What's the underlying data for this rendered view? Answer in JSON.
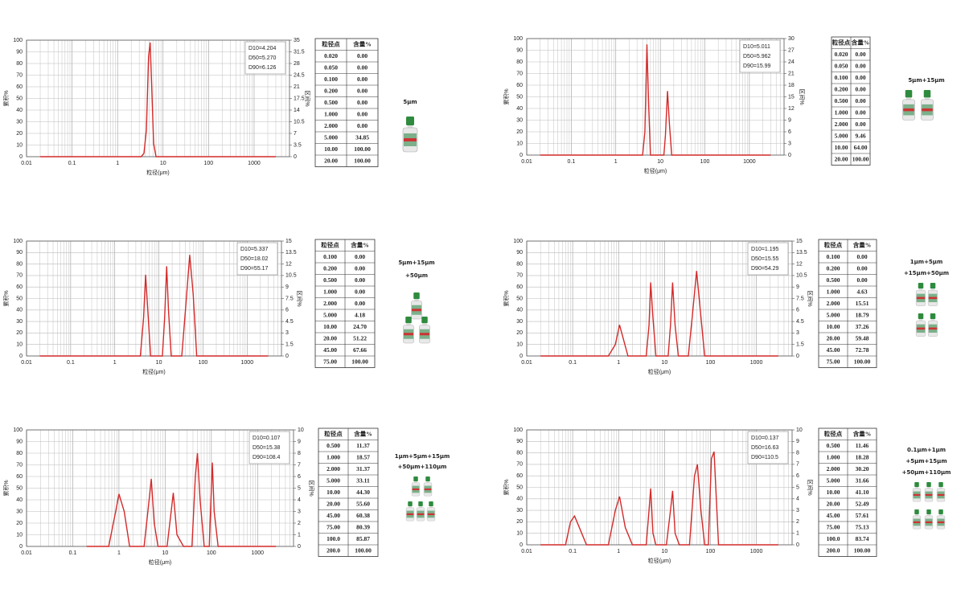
{
  "chart_data": [
    {
      "type": "line",
      "x_label": "粒径(μm)",
      "y_label": "累积%",
      "y2_label": "区间%",
      "xscale": "log",
      "grid": true,
      "minor_grid": true,
      "xlim": [
        0.01,
        6000
      ],
      "xticks": [
        0.01,
        0.1,
        1,
        10,
        100,
        1000
      ],
      "ylim": [
        0,
        100
      ],
      "yticks": [
        0,
        10,
        20,
        30,
        40,
        50,
        60,
        70,
        80,
        90,
        100
      ],
      "y2lim": [
        0,
        35
      ],
      "y2ticks": [
        0,
        3.5,
        7,
        10.5,
        14,
        17.5,
        21,
        24.5,
        28,
        31.5,
        35
      ],
      "x": [
        0.02,
        3.3,
        3.8,
        4.3,
        4.8,
        5.2,
        5.6,
        6.2,
        7,
        3000
      ],
      "series": [
        {
          "color": "#d42a2a",
          "axis": "y2",
          "values": [
            0,
            0,
            1,
            8,
            30,
            34.3,
            22,
            4,
            0,
            0
          ]
        }
      ],
      "stats": [
        "D10=4.204",
        "D50=5.270",
        "D90=6.126"
      ],
      "table": {
        "header": [
          "粒径点",
          "含量%"
        ],
        "rows": [
          [
            "0.020",
            "0.00"
          ],
          [
            "0.050",
            "0.00"
          ],
          [
            "0.100",
            "0.00"
          ],
          [
            "0.200",
            "0.00"
          ],
          [
            "0.500",
            "0.00"
          ],
          [
            "1.000",
            "0.00"
          ],
          [
            "2.000",
            "0.00"
          ],
          [
            "5.000",
            "34.85"
          ],
          [
            "10.00",
            "100.00"
          ],
          [
            "20.00",
            "100.00"
          ]
        ]
      },
      "label": [
        "5μm"
      ]
    },
    {
      "type": "line",
      "x_label": "粒径(μm)",
      "y_label": "累积%",
      "y2_label": "区间%",
      "xscale": "log",
      "grid": true,
      "minor_grid": true,
      "xlim": [
        0.01,
        6000
      ],
      "xticks": [
        0.01,
        0.1,
        1,
        10,
        100,
        1000
      ],
      "ylim": [
        0,
        100
      ],
      "yticks": [
        0,
        10,
        20,
        30,
        40,
        50,
        60,
        70,
        80,
        90,
        100
      ],
      "y2lim": [
        0,
        30
      ],
      "y2ticks": [
        0,
        3,
        6,
        9,
        12,
        15,
        18,
        21,
        24,
        27,
        30
      ],
      "x": [
        0.02,
        4,
        4.5,
        5,
        5.5,
        6,
        12,
        13,
        14.5,
        16,
        18,
        3000
      ],
      "series": [
        {
          "color": "#d42a2a",
          "axis": "y2",
          "values": [
            0,
            0,
            6,
            28.5,
            12,
            0,
            0,
            5,
            16.5,
            8,
            0,
            0
          ]
        }
      ],
      "stats": [
        "D10=5.011",
        "D50=5.962",
        "D90=15.99"
      ],
      "table": {
        "header": [
          "粒径点",
          "含量%"
        ],
        "rows": [
          [
            "0.020",
            "0.00"
          ],
          [
            "0.050",
            "0.00"
          ],
          [
            "0.100",
            "0.00"
          ],
          [
            "0.200",
            "0.00"
          ],
          [
            "0.500",
            "0.00"
          ],
          [
            "1.000",
            "0.00"
          ],
          [
            "2.000",
            "0.00"
          ],
          [
            "5.000",
            "9.46"
          ],
          [
            "10.00",
            "64.00"
          ],
          [
            "20.00",
            "100.00"
          ]
        ]
      },
      "label": [
        "5μm+15μm"
      ]
    },
    {
      "type": "line",
      "x_label": "粒径(μm)",
      "y_label": "累积%",
      "y2_label": "区间%",
      "xscale": "log",
      "grid": true,
      "minor_grid": true,
      "xlim": [
        0.01,
        6000
      ],
      "xticks": [
        0.01,
        0.1,
        1,
        10,
        100,
        1000
      ],
      "ylim": [
        0,
        100
      ],
      "yticks": [
        0,
        10,
        20,
        30,
        40,
        50,
        60,
        70,
        80,
        90,
        100
      ],
      "y2lim": [
        0,
        15
      ],
      "y2ticks": [
        0,
        1.5,
        3,
        4.5,
        6,
        7.5,
        9,
        10.5,
        12,
        13.5,
        15
      ],
      "x": [
        0.02,
        3.8,
        4.5,
        5,
        5.6,
        6.5,
        12,
        13.5,
        15,
        16.5,
        19,
        33,
        40,
        50,
        60,
        72,
        3000
      ],
      "series": [
        {
          "color": "#d42a2a",
          "axis": "y2",
          "values": [
            0,
            0,
            5,
            10.6,
            6,
            0,
            0,
            5,
            11.7,
            6,
            0,
            0,
            6,
            13.2,
            8,
            0,
            0
          ]
        }
      ],
      "stats": [
        "D10=5.337",
        "D50=18.02",
        "D90=55.17"
      ],
      "table": {
        "header": [
          "粒径点",
          "含量%"
        ],
        "rows": [
          [
            "0.100",
            "0.00"
          ],
          [
            "0.200",
            "0.00"
          ],
          [
            "0.500",
            "0.00"
          ],
          [
            "1.000",
            "0.00"
          ],
          [
            "2.000",
            "0.00"
          ],
          [
            "5.000",
            "4.18"
          ],
          [
            "10.00",
            "24.70"
          ],
          [
            "20.00",
            "51.22"
          ],
          [
            "45.00",
            "67.66"
          ],
          [
            "75.00",
            "100.00"
          ]
        ]
      },
      "label": [
        "5μm+15μm",
        "+50μm"
      ]
    },
    {
      "type": "line",
      "x_label": "粒径(μm)",
      "y_label": "累积%",
      "y2_label": "区间%",
      "xscale": "log",
      "grid": true,
      "minor_grid": true,
      "xlim": [
        0.01,
        6000
      ],
      "xticks": [
        0.01,
        0.1,
        1,
        10,
        100,
        1000
      ],
      "ylim": [
        0,
        100
      ],
      "yticks": [
        0,
        10,
        20,
        30,
        40,
        50,
        60,
        70,
        80,
        90,
        100
      ],
      "y2lim": [
        0,
        15
      ],
      "y2ticks": [
        0,
        1.5,
        3,
        4.5,
        6,
        7.5,
        9,
        10.5,
        12,
        13.5,
        15
      ],
      "x": [
        0.02,
        0.6,
        0.85,
        1.05,
        1.3,
        1.6,
        4,
        4.6,
        5,
        5.6,
        6.5,
        12,
        13.5,
        15,
        17,
        20,
        33,
        40,
        50,
        60,
        75,
        3000
      ],
      "series": [
        {
          "color": "#d42a2a",
          "axis": "y2",
          "values": [
            0,
            0,
            1.5,
            4.05,
            2,
            0,
            0,
            4,
            9.6,
            5,
            0,
            0,
            4,
            9.6,
            4,
            0,
            0,
            5,
            11.1,
            6,
            0,
            0
          ]
        }
      ],
      "stats": [
        "D10=1.195",
        "D50=15.55",
        "D90=54.29"
      ],
      "table": {
        "header": [
          "粒径点",
          "含量%"
        ],
        "rows": [
          [
            "0.100",
            "0.00"
          ],
          [
            "0.200",
            "0.00"
          ],
          [
            "0.500",
            "0.00"
          ],
          [
            "1.000",
            "4.63"
          ],
          [
            "2.000",
            "15.51"
          ],
          [
            "5.000",
            "18.79"
          ],
          [
            "10.00",
            "37.26"
          ],
          [
            "20.00",
            "59.48"
          ],
          [
            "45.00",
            "72.78"
          ],
          [
            "75.00",
            "100.00"
          ]
        ]
      },
      "label": [
        "1μm+5μm",
        "+15μm+50μm"
      ]
    },
    {
      "type": "line",
      "x_label": "粒径(μm)",
      "y_label": "累积%",
      "y2_label": "区间%",
      "xscale": "log",
      "grid": true,
      "minor_grid": true,
      "xlim": [
        0.01,
        6000
      ],
      "xticks": [
        0.01,
        0.1,
        1,
        10,
        100,
        1000
      ],
      "ylim": [
        0,
        100
      ],
      "yticks": [
        0,
        10,
        20,
        30,
        40,
        50,
        60,
        70,
        80,
        90,
        100
      ],
      "y2lim": [
        0,
        10
      ],
      "y2ticks": [
        0,
        1,
        2,
        3,
        4,
        5,
        6,
        7,
        8,
        9,
        10
      ],
      "x": [
        0.2,
        0.6,
        0.85,
        1,
        1.3,
        1.7,
        3.5,
        4.5,
        5,
        5.8,
        7,
        11,
        13.5,
        15,
        18,
        25,
        38,
        45,
        50,
        57,
        70,
        90,
        105,
        115,
        140,
        2500
      ],
      "series": [
        {
          "color": "#d42a2a",
          "axis": "y2",
          "values": [
            0,
            0,
            3,
            4.5,
            3,
            0,
            0,
            4,
            5.8,
            2,
            0,
            0,
            3,
            4.6,
            1,
            0,
            0,
            6,
            8,
            4,
            0,
            0,
            7.2,
            3,
            0,
            0
          ]
        }
      ],
      "stats": [
        "D10=0.107",
        "D50=15.38",
        "D90=108.4"
      ],
      "table": {
        "header": [
          "粒径点",
          "含量%"
        ],
        "rows": [
          [
            "0.500",
            "11.37"
          ],
          [
            "1.000",
            "18.57"
          ],
          [
            "2.000",
            "31.37"
          ],
          [
            "5.000",
            "33.11"
          ],
          [
            "10.00",
            "44.30"
          ],
          [
            "20.00",
            "55.60"
          ],
          [
            "45.00",
            "60.38"
          ],
          [
            "75.00",
            "80.39"
          ],
          [
            "100.0",
            "85.87"
          ],
          [
            "200.0",
            "100.00"
          ]
        ]
      },
      "label": [
        "1μm+5μm+15μm",
        "+50μm+110μm"
      ]
    },
    {
      "type": "line",
      "x_label": "粒径(μm)",
      "y_label": "累积%",
      "y2_label": "区间%",
      "xscale": "log",
      "grid": true,
      "minor_grid": true,
      "xlim": [
        0.01,
        6000
      ],
      "xticks": [
        0.01,
        0.1,
        1,
        10,
        100,
        1000
      ],
      "ylim": [
        0,
        100
      ],
      "yticks": [
        0,
        10,
        20,
        30,
        40,
        50,
        60,
        70,
        80,
        90,
        100
      ],
      "y2lim": [
        0,
        10
      ],
      "y2ticks": [
        0,
        1,
        2,
        3,
        4,
        5,
        6,
        7,
        8,
        9,
        10
      ],
      "x": [
        0.02,
        0.07,
        0.09,
        0.11,
        0.14,
        0.2,
        0.6,
        0.85,
        1.05,
        1.4,
        2,
        4,
        4.6,
        5,
        5.6,
        6.5,
        11,
        13.5,
        15,
        17,
        21,
        35,
        45,
        52,
        62,
        75,
        90,
        105,
        120,
        150,
        3000
      ],
      "series": [
        {
          "color": "#d42a2a",
          "axis": "y2",
          "values": [
            0,
            0,
            2,
            2.5,
            1.5,
            0,
            0,
            3,
            4.2,
            1.5,
            0,
            0,
            3,
            4.9,
            1,
            0,
            0,
            3,
            4.7,
            1,
            0,
            0,
            6,
            7,
            3,
            0,
            0,
            7.5,
            8.1,
            0,
            0
          ]
        }
      ],
      "stats": [
        "D10=0.137",
        "D50=16.63",
        "D90=110.5"
      ],
      "table": {
        "header": [
          "粒径点",
          "含量%"
        ],
        "rows": [
          [
            "0.500",
            "11.46"
          ],
          [
            "1.000",
            "18.28"
          ],
          [
            "2.000",
            "30.20"
          ],
          [
            "5.000",
            "31.66"
          ],
          [
            "10.00",
            "41.10"
          ],
          [
            "20.00",
            "52.49"
          ],
          [
            "45.00",
            "57.61"
          ],
          [
            "75.00",
            "75.13"
          ],
          [
            "100.0",
            "83.74"
          ],
          [
            "200.0",
            "100.00"
          ]
        ]
      },
      "label": [
        "0.1μm+1μm",
        "+5μm+15μm",
        "+50μm+110μm"
      ]
    }
  ]
}
